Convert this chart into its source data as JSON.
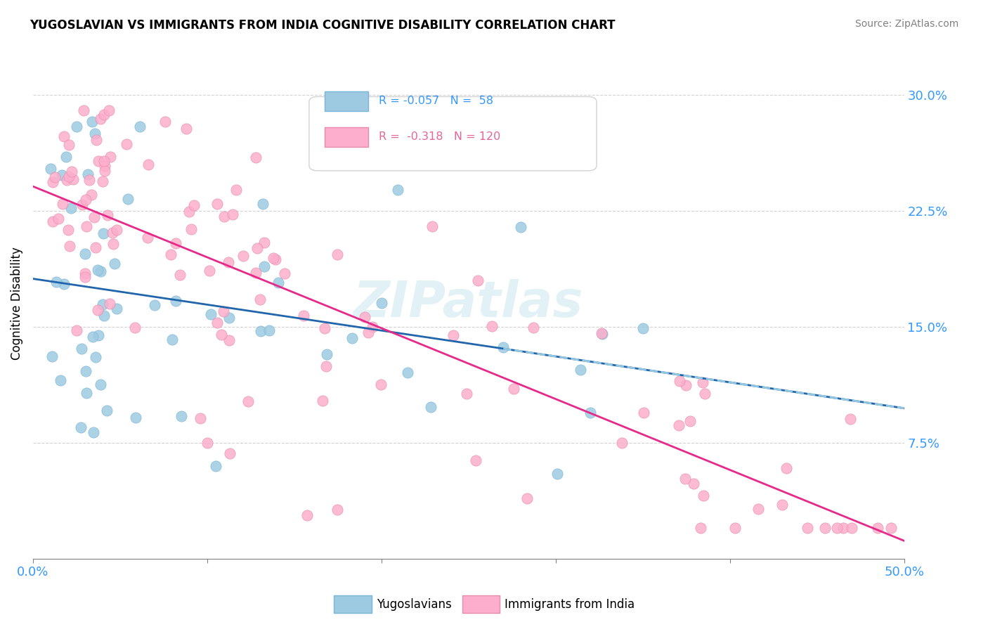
{
  "title": "YUGOSLAVIAN VS IMMIGRANTS FROM INDIA COGNITIVE DISABILITY CORRELATION CHART",
  "source": "Source: ZipAtlas.com",
  "ylabel": "Cognitive Disability",
  "yticks": [
    0.075,
    0.15,
    0.225,
    0.3
  ],
  "ytick_labels": [
    "7.5%",
    "15.0%",
    "22.5%",
    "30.0%"
  ],
  "xlim": [
    0.0,
    0.5
  ],
  "ylim": [
    0.0,
    0.33
  ],
  "yugoslavian_color": "#9ecae1",
  "india_color": "#fcaecc",
  "yugoslavian_edge_color": "#7ab5d8",
  "india_edge_color": "#e88aaa",
  "trend_yugo_color": "#2166ac",
  "trend_india_color": "#e7298a",
  "trend_yugo_dash_color": "#92c5de",
  "background_color": "#ffffff",
  "watermark": "ZIPatlas",
  "tick_color": "#3399ff",
  "yugo_R": -0.057,
  "india_R": -0.318,
  "yugo_N": 58,
  "india_N": 120
}
